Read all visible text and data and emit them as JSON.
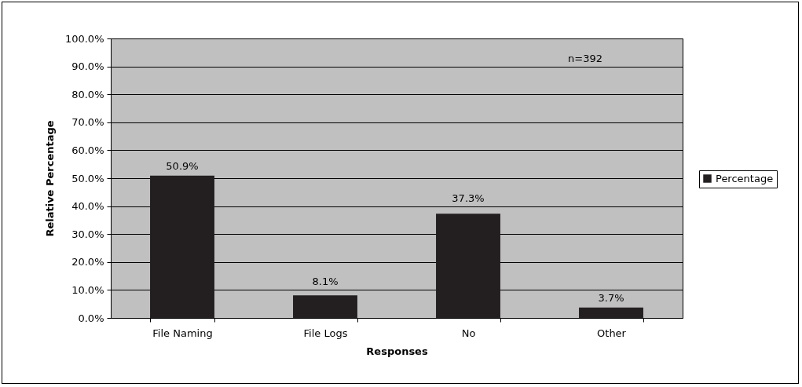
{
  "chart_data": {
    "type": "bar",
    "xlabel": "Responses",
    "ylabel": "Relative Percentage",
    "categories": [
      "File Naming",
      "File Logs",
      "No",
      "Other"
    ],
    "series": [
      {
        "name": "Percentage",
        "color": "#231f20",
        "values": [
          50.9,
          8.1,
          37.3,
          3.7
        ],
        "value_labels": [
          "50.9%",
          "8.1%",
          "37.3%",
          "3.7%"
        ]
      }
    ],
    "ylim": [
      0,
      100
    ],
    "yticks": [
      {
        "value": 0,
        "label": "0.0%"
      },
      {
        "value": 10,
        "label": "10.0%"
      },
      {
        "value": 20,
        "label": "20.0%"
      },
      {
        "value": 30,
        "label": "30.0%"
      },
      {
        "value": 40,
        "label": "40.0%"
      },
      {
        "value": 50,
        "label": "50.0%"
      },
      {
        "value": 60,
        "label": "60.0%"
      },
      {
        "value": 70,
        "label": "70.0%"
      },
      {
        "value": 80,
        "label": "80.0%"
      },
      {
        "value": 90,
        "label": "90.0%"
      },
      {
        "value": 100,
        "label": "100.0%"
      }
    ],
    "grid": "y",
    "legend": "right",
    "annotations": [
      "n=392"
    ]
  }
}
